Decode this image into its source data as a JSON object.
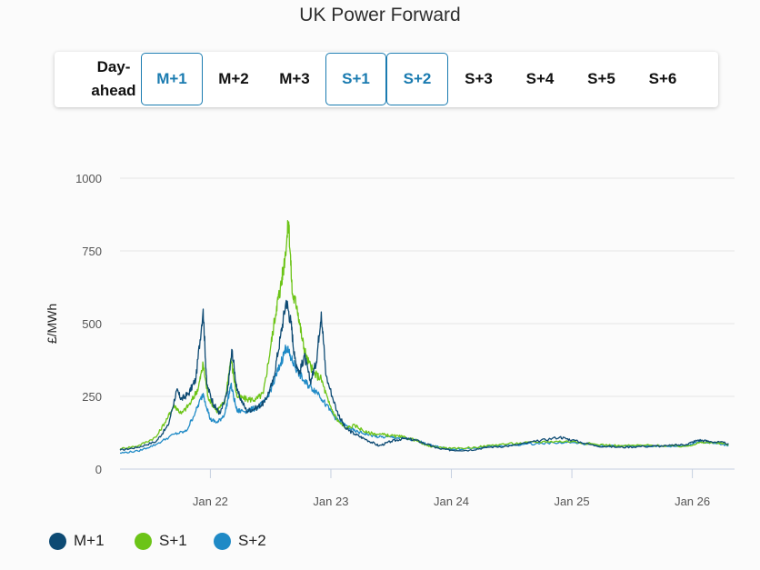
{
  "title": "UK Power Forward",
  "tabs": [
    {
      "label": "Day-ahead",
      "active": false
    },
    {
      "label": "M+1",
      "active": true
    },
    {
      "label": "M+2",
      "active": false
    },
    {
      "label": "M+3",
      "active": false
    },
    {
      "label": "S+1",
      "active": true
    },
    {
      "label": "S+2",
      "active": true
    },
    {
      "label": "S+3",
      "active": false
    },
    {
      "label": "S+4",
      "active": false
    },
    {
      "label": "S+5",
      "active": false
    },
    {
      "label": "S+6",
      "active": false
    }
  ],
  "chart_data": {
    "type": "line",
    "title": "UK Power Forward",
    "xlabel": "",
    "ylabel": "£/MWh",
    "ylim": [
      0,
      1000
    ],
    "yticks": [
      0,
      250,
      500,
      750,
      1000
    ],
    "xlim": [
      2021.25,
      2026.35
    ],
    "xticks": [
      {
        "label": "Jan 22",
        "value": 2022.0
      },
      {
        "label": "Jan 23",
        "value": 2023.0
      },
      {
        "label": "Jan 24",
        "value": 2024.0
      },
      {
        "label": "Jan 25",
        "value": 2025.0
      },
      {
        "label": "Jan 26",
        "value": 2026.0
      }
    ],
    "grid": true,
    "legend": "bottom-left",
    "series": [
      {
        "name": "M+1",
        "color": "#0d4a73",
        "points": [
          [
            2021.25,
            65
          ],
          [
            2021.4,
            75
          ],
          [
            2021.55,
            95
          ],
          [
            2021.65,
            150
          ],
          [
            2021.72,
            270
          ],
          [
            2021.76,
            240
          ],
          [
            2021.82,
            260
          ],
          [
            2021.88,
            310
          ],
          [
            2021.94,
            550
          ],
          [
            2021.97,
            290
          ],
          [
            2022.03,
            220
          ],
          [
            2022.08,
            190
          ],
          [
            2022.14,
            260
          ],
          [
            2022.18,
            410
          ],
          [
            2022.22,
            270
          ],
          [
            2022.3,
            200
          ],
          [
            2022.38,
            210
          ],
          [
            2022.45,
            230
          ],
          [
            2022.52,
            300
          ],
          [
            2022.58,
            450
          ],
          [
            2022.63,
            580
          ],
          [
            2022.67,
            500
          ],
          [
            2022.7,
            380
          ],
          [
            2022.74,
            330
          ],
          [
            2022.78,
            390
          ],
          [
            2022.83,
            300
          ],
          [
            2022.88,
            370
          ],
          [
            2022.92,
            540
          ],
          [
            2022.96,
            320
          ],
          [
            2023.05,
            200
          ],
          [
            2023.12,
            140
          ],
          [
            2023.2,
            120
          ],
          [
            2023.3,
            100
          ],
          [
            2023.4,
            80
          ],
          [
            2023.5,
            95
          ],
          [
            2023.6,
            105
          ],
          [
            2023.7,
            100
          ],
          [
            2023.8,
            85
          ],
          [
            2023.9,
            70
          ],
          [
            2024.0,
            65
          ],
          [
            2024.15,
            65
          ],
          [
            2024.3,
            75
          ],
          [
            2024.5,
            80
          ],
          [
            2024.7,
            95
          ],
          [
            2024.9,
            110
          ],
          [
            2025.0,
            100
          ],
          [
            2025.2,
            80
          ],
          [
            2025.4,
            75
          ],
          [
            2025.6,
            78
          ],
          [
            2025.8,
            80
          ],
          [
            2025.95,
            85
          ],
          [
            2026.05,
            100
          ],
          [
            2026.15,
            95
          ],
          [
            2026.3,
            88
          ]
        ]
      },
      {
        "name": "S+1",
        "color": "#6cc417",
        "points": [
          [
            2021.25,
            70
          ],
          [
            2021.4,
            80
          ],
          [
            2021.55,
            110
          ],
          [
            2021.65,
            180
          ],
          [
            2021.7,
            220
          ],
          [
            2021.76,
            190
          ],
          [
            2021.84,
            230
          ],
          [
            2021.9,
            280
          ],
          [
            2021.94,
            360
          ],
          [
            2021.98,
            250
          ],
          [
            2022.05,
            200
          ],
          [
            2022.12,
            230
          ],
          [
            2022.17,
            380
          ],
          [
            2022.22,
            250
          ],
          [
            2022.3,
            240
          ],
          [
            2022.38,
            240
          ],
          [
            2022.44,
            260
          ],
          [
            2022.5,
            420
          ],
          [
            2022.55,
            560
          ],
          [
            2022.58,
            620
          ],
          [
            2022.61,
            700
          ],
          [
            2022.65,
            850
          ],
          [
            2022.68,
            600
          ],
          [
            2022.72,
            560
          ],
          [
            2022.76,
            450
          ],
          [
            2022.8,
            380
          ],
          [
            2022.86,
            330
          ],
          [
            2022.92,
            310
          ],
          [
            2022.98,
            230
          ],
          [
            2023.05,
            170
          ],
          [
            2023.12,
            140
          ],
          [
            2023.2,
            150
          ],
          [
            2023.3,
            125
          ],
          [
            2023.4,
            120
          ],
          [
            2023.5,
            115
          ],
          [
            2023.6,
            110
          ],
          [
            2023.7,
            100
          ],
          [
            2023.8,
            80
          ],
          [
            2023.9,
            75
          ],
          [
            2024.0,
            70
          ],
          [
            2024.2,
            75
          ],
          [
            2024.4,
            85
          ],
          [
            2024.6,
            90
          ],
          [
            2024.8,
            95
          ],
          [
            2025.0,
            95
          ],
          [
            2025.2,
            85
          ],
          [
            2025.4,
            80
          ],
          [
            2025.6,
            82
          ],
          [
            2025.8,
            80
          ],
          [
            2025.95,
            78
          ],
          [
            2026.05,
            90
          ],
          [
            2026.15,
            92
          ],
          [
            2026.3,
            85
          ]
        ]
      },
      {
        "name": "S+2",
        "color": "#1f8ac6",
        "points": [
          [
            2021.25,
            55
          ],
          [
            2021.4,
            62
          ],
          [
            2021.55,
            85
          ],
          [
            2021.7,
            120
          ],
          [
            2021.8,
            130
          ],
          [
            2021.88,
            200
          ],
          [
            2021.94,
            260
          ],
          [
            2022.0,
            170
          ],
          [
            2022.06,
            160
          ],
          [
            2022.12,
            190
          ],
          [
            2022.17,
            290
          ],
          [
            2022.22,
            200
          ],
          [
            2022.3,
            200
          ],
          [
            2022.38,
            210
          ],
          [
            2022.45,
            230
          ],
          [
            2022.52,
            290
          ],
          [
            2022.58,
            360
          ],
          [
            2022.63,
            420
          ],
          [
            2022.67,
            380
          ],
          [
            2022.72,
            340
          ],
          [
            2022.78,
            300
          ],
          [
            2022.84,
            280
          ],
          [
            2022.9,
            260
          ],
          [
            2022.96,
            220
          ],
          [
            2023.05,
            170
          ],
          [
            2023.12,
            150
          ],
          [
            2023.2,
            130
          ],
          [
            2023.3,
            120
          ],
          [
            2023.4,
            110
          ],
          [
            2023.5,
            110
          ],
          [
            2023.6,
            105
          ],
          [
            2023.7,
            100
          ],
          [
            2023.8,
            85
          ],
          [
            2023.9,
            75
          ],
          [
            2024.0,
            68
          ],
          [
            2024.2,
            72
          ],
          [
            2024.4,
            80
          ],
          [
            2024.6,
            85
          ],
          [
            2024.8,
            90
          ],
          [
            2025.0,
            92
          ],
          [
            2025.2,
            82
          ],
          [
            2025.4,
            78
          ],
          [
            2025.6,
            80
          ],
          [
            2025.8,
            78
          ],
          [
            2025.95,
            80
          ],
          [
            2026.05,
            95
          ],
          [
            2026.15,
            90
          ],
          [
            2026.3,
            82
          ]
        ]
      }
    ]
  }
}
